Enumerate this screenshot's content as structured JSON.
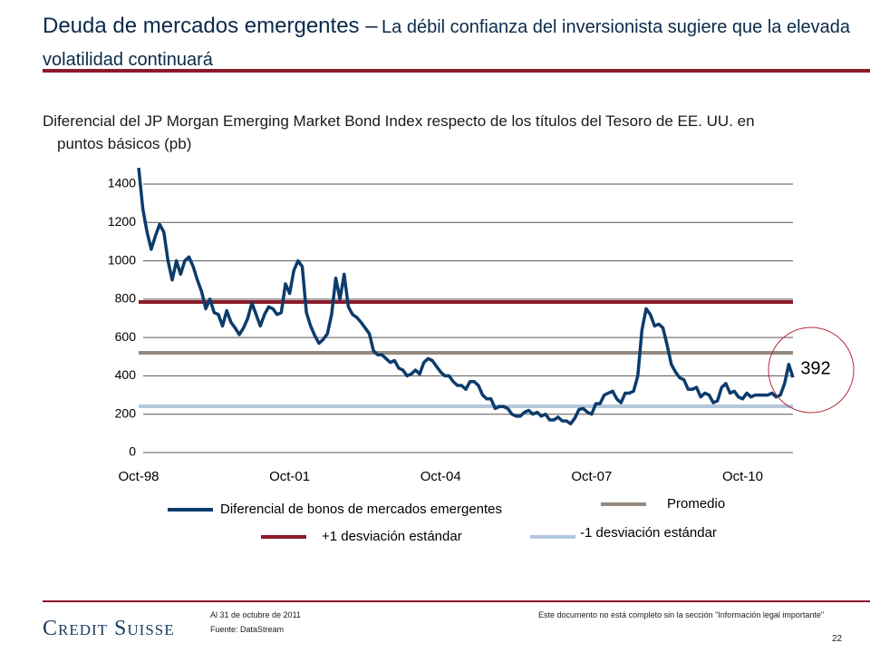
{
  "header": {
    "title": "Deuda de mercados emergentes –",
    "title_rest": "La débil confianza del inversionista sugiere que la elevada volatilidad continuará"
  },
  "chart_data": {
    "type": "line",
    "subtitle": "Diferencial del JP Morgan Emerging Market Bond Index respecto de los títulos del Tesoro de EE. UU. en puntos básicos (pb)",
    "categories": [
      "Oct-98",
      null,
      null,
      null,
      null,
      null,
      null,
      null,
      null,
      null,
      null,
      null,
      null,
      null,
      null,
      null,
      null,
      null,
      null,
      null,
      null,
      null,
      null,
      null,
      null,
      null,
      null,
      null,
      null,
      null,
      null,
      null,
      null,
      null,
      null,
      null,
      "Oct-01",
      null,
      null,
      null,
      null,
      null,
      null,
      null,
      null,
      null,
      null,
      null,
      null,
      null,
      null,
      null,
      null,
      null,
      null,
      null,
      null,
      null,
      null,
      null,
      null,
      null,
      null,
      null,
      null,
      null,
      null,
      null,
      null,
      null,
      null,
      null,
      "Oct-04",
      null,
      null,
      null,
      null,
      null,
      null,
      null,
      null,
      null,
      null,
      null,
      null,
      null,
      null,
      null,
      null,
      null,
      null,
      null,
      null,
      null,
      null,
      null,
      null,
      null,
      null,
      null,
      null,
      null,
      null,
      null,
      null,
      null,
      null,
      null,
      "Oct-07",
      null,
      null,
      null,
      null,
      null,
      null,
      null,
      null,
      null,
      null,
      null,
      null,
      null,
      null,
      null,
      null,
      null,
      null,
      null,
      null,
      null,
      null,
      null,
      null,
      null,
      null,
      null,
      null,
      null,
      null,
      null,
      null,
      null,
      null,
      null,
      "Oct-10",
      null,
      null,
      null,
      null,
      null,
      null,
      null,
      null,
      null,
      null,
      null,
      null
    ],
    "series": [
      {
        "name": "Diferencial de bonos de mercados emergentes",
        "color": "#0b3c6b",
        "values": [
          1485,
          1270,
          1150,
          1060,
          1130,
          1190,
          1150,
          1000,
          900,
          1000,
          930,
          1000,
          1020,
          970,
          900,
          840,
          750,
          800,
          730,
          720,
          660,
          740,
          680,
          650,
          615,
          650,
          700,
          780,
          720,
          660,
          720,
          760,
          750,
          720,
          730,
          880,
          830,
          950,
          1000,
          970,
          730,
          660,
          610,
          570,
          590,
          620,
          720,
          910,
          800,
          930,
          760,
          720,
          705,
          680,
          650,
          620,
          530,
          510,
          510,
          490,
          470,
          480,
          440,
          430,
          400,
          410,
          430,
          410,
          470,
          490,
          480,
          450,
          420,
          400,
          400,
          370,
          350,
          350,
          330,
          370,
          370,
          350,
          300,
          280,
          280,
          230,
          240,
          240,
          230,
          200,
          190,
          190,
          210,
          220,
          200,
          210,
          190,
          200,
          170,
          170,
          185,
          165,
          165,
          150,
          180,
          225,
          230,
          210,
          200,
          255,
          255,
          300,
          310,
          320,
          280,
          260,
          310,
          310,
          320,
          400,
          640,
          750,
          720,
          660,
          670,
          650,
          560,
          460,
          420,
          390,
          380,
          330,
          330,
          340,
          290,
          310,
          300,
          260,
          270,
          340,
          360,
          310,
          320,
          290,
          280,
          310,
          290,
          300,
          300,
          300,
          300,
          310,
          290,
          300,
          360,
          460,
          392
        ]
      }
    ],
    "reference_lines": [
      {
        "name": "Promedio",
        "color": "#948a80",
        "value": 520
      },
      {
        "name": "+1  desviación estándar",
        "color": "#8b1a2b",
        "value": 785
      },
      {
        "name": "-1 desviación estándar",
        "color": "#b4c7dc",
        "value": 241
      }
    ],
    "annotation": 392,
    "ylim": [
      0,
      1400
    ],
    "yticks": [
      0,
      200,
      400,
      600,
      800,
      1000,
      1200,
      1400
    ],
    "grid": true
  },
  "footer": {
    "date": "Al 31 de octubre de 2011",
    "source": "Fuente: DataStream",
    "disclaimer": "Este documento no está completo sin la sección \"Información legal importante\"",
    "page": "22",
    "logo": "Credit Suisse"
  }
}
